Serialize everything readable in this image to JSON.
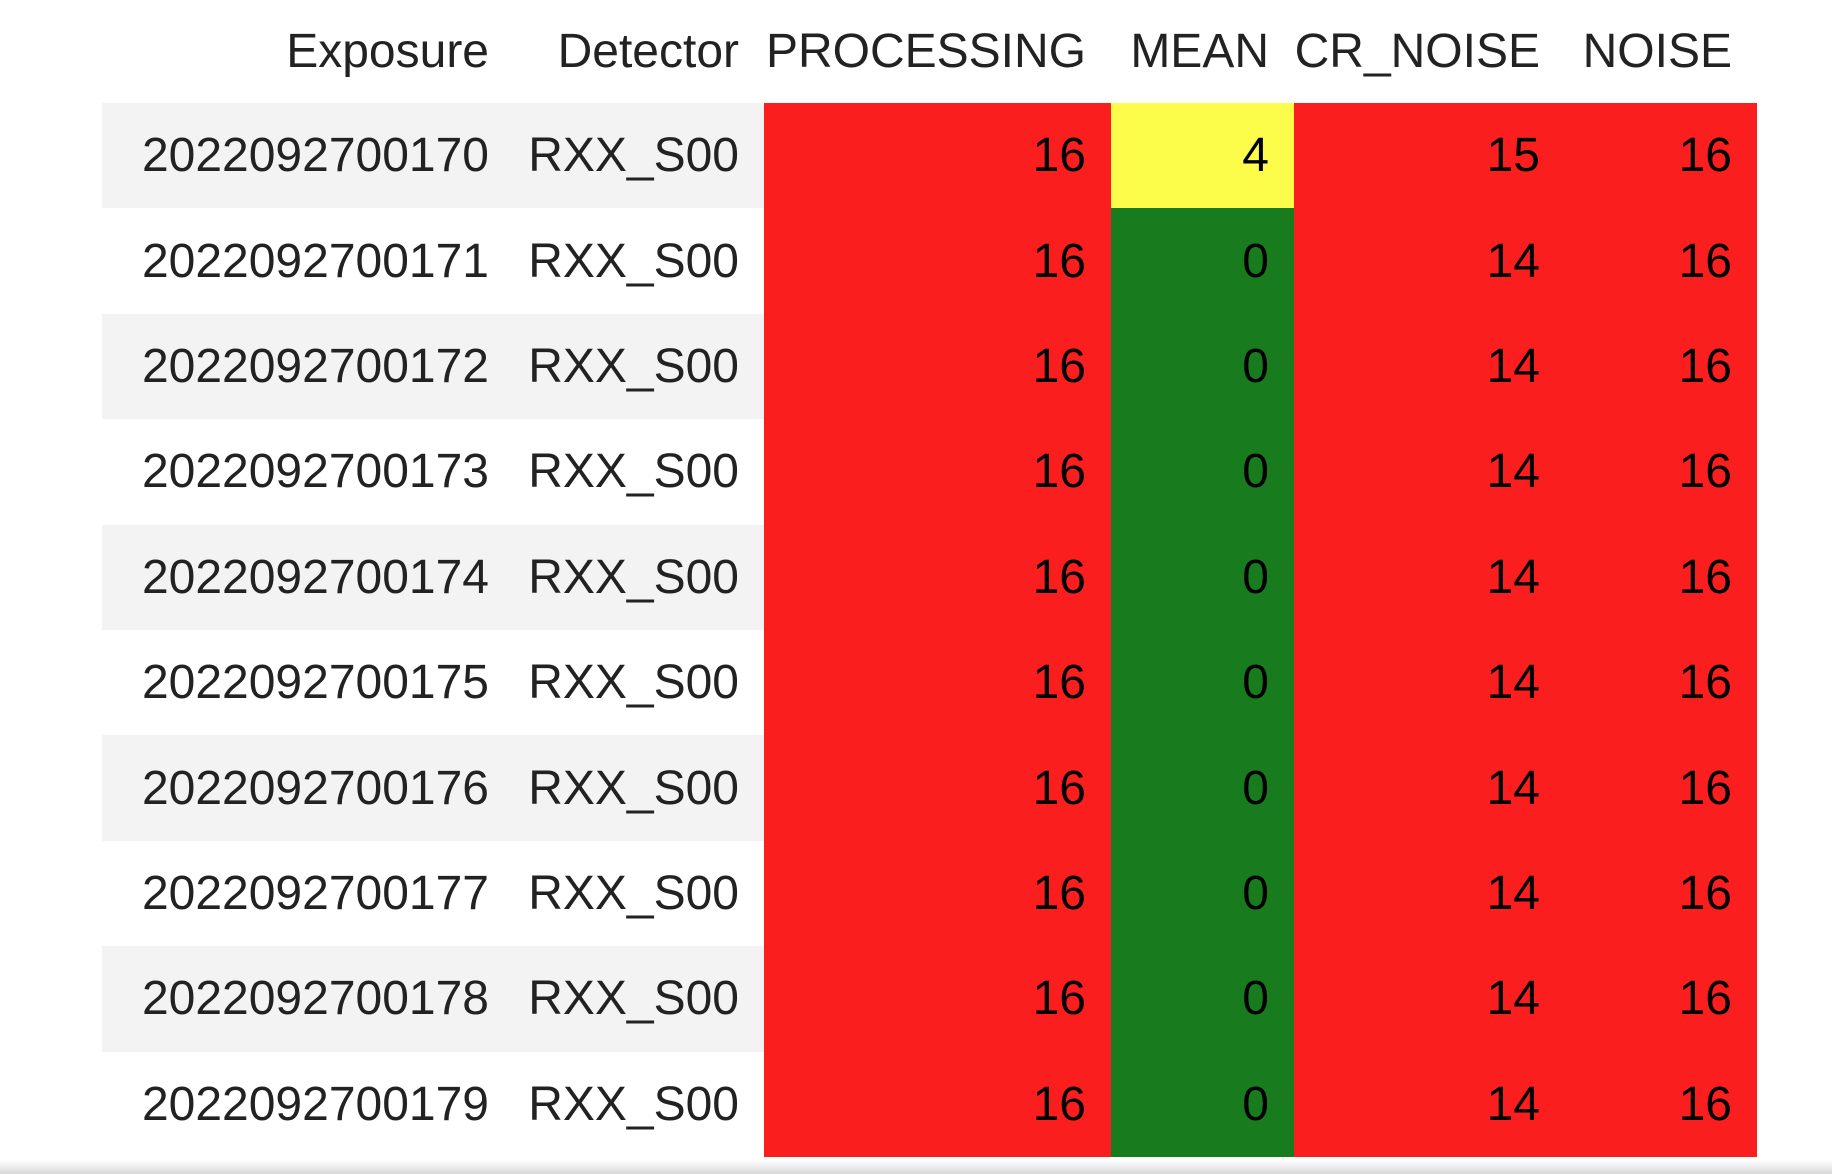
{
  "table": {
    "columns": [
      "Exposure",
      "Detector",
      "PROCESSING",
      "MEAN",
      "CR_NOISE",
      "NOISE"
    ],
    "colors": {
      "red": "#fa1e1e",
      "yellow": "#fcfc4a",
      "green": "#187c1e"
    },
    "rows": [
      {
        "exposure": "2022092700170",
        "detector": "RXX_S00",
        "values": [
          16,
          4,
          15,
          16
        ],
        "cell_colors": [
          "red",
          "yellow",
          "red",
          "red"
        ]
      },
      {
        "exposure": "2022092700171",
        "detector": "RXX_S00",
        "values": [
          16,
          0,
          14,
          16
        ],
        "cell_colors": [
          "red",
          "green",
          "red",
          "red"
        ]
      },
      {
        "exposure": "2022092700172",
        "detector": "RXX_S00",
        "values": [
          16,
          0,
          14,
          16
        ],
        "cell_colors": [
          "red",
          "green",
          "red",
          "red"
        ]
      },
      {
        "exposure": "2022092700173",
        "detector": "RXX_S00",
        "values": [
          16,
          0,
          14,
          16
        ],
        "cell_colors": [
          "red",
          "green",
          "red",
          "red"
        ]
      },
      {
        "exposure": "2022092700174",
        "detector": "RXX_S00",
        "values": [
          16,
          0,
          14,
          16
        ],
        "cell_colors": [
          "red",
          "green",
          "red",
          "red"
        ]
      },
      {
        "exposure": "2022092700175",
        "detector": "RXX_S00",
        "values": [
          16,
          0,
          14,
          16
        ],
        "cell_colors": [
          "red",
          "green",
          "red",
          "red"
        ]
      },
      {
        "exposure": "2022092700176",
        "detector": "RXX_S00",
        "values": [
          16,
          0,
          14,
          16
        ],
        "cell_colors": [
          "red",
          "green",
          "red",
          "red"
        ]
      },
      {
        "exposure": "2022092700177",
        "detector": "RXX_S00",
        "values": [
          16,
          0,
          14,
          16
        ],
        "cell_colors": [
          "red",
          "green",
          "red",
          "red"
        ]
      },
      {
        "exposure": "2022092700178",
        "detector": "RXX_S00",
        "values": [
          16,
          0,
          14,
          16
        ],
        "cell_colors": [
          "red",
          "green",
          "red",
          "red"
        ]
      },
      {
        "exposure": "2022092700179",
        "detector": "RXX_S00",
        "values": [
          16,
          0,
          14,
          16
        ],
        "cell_colors": [
          "red",
          "green",
          "red",
          "red"
        ]
      }
    ]
  }
}
